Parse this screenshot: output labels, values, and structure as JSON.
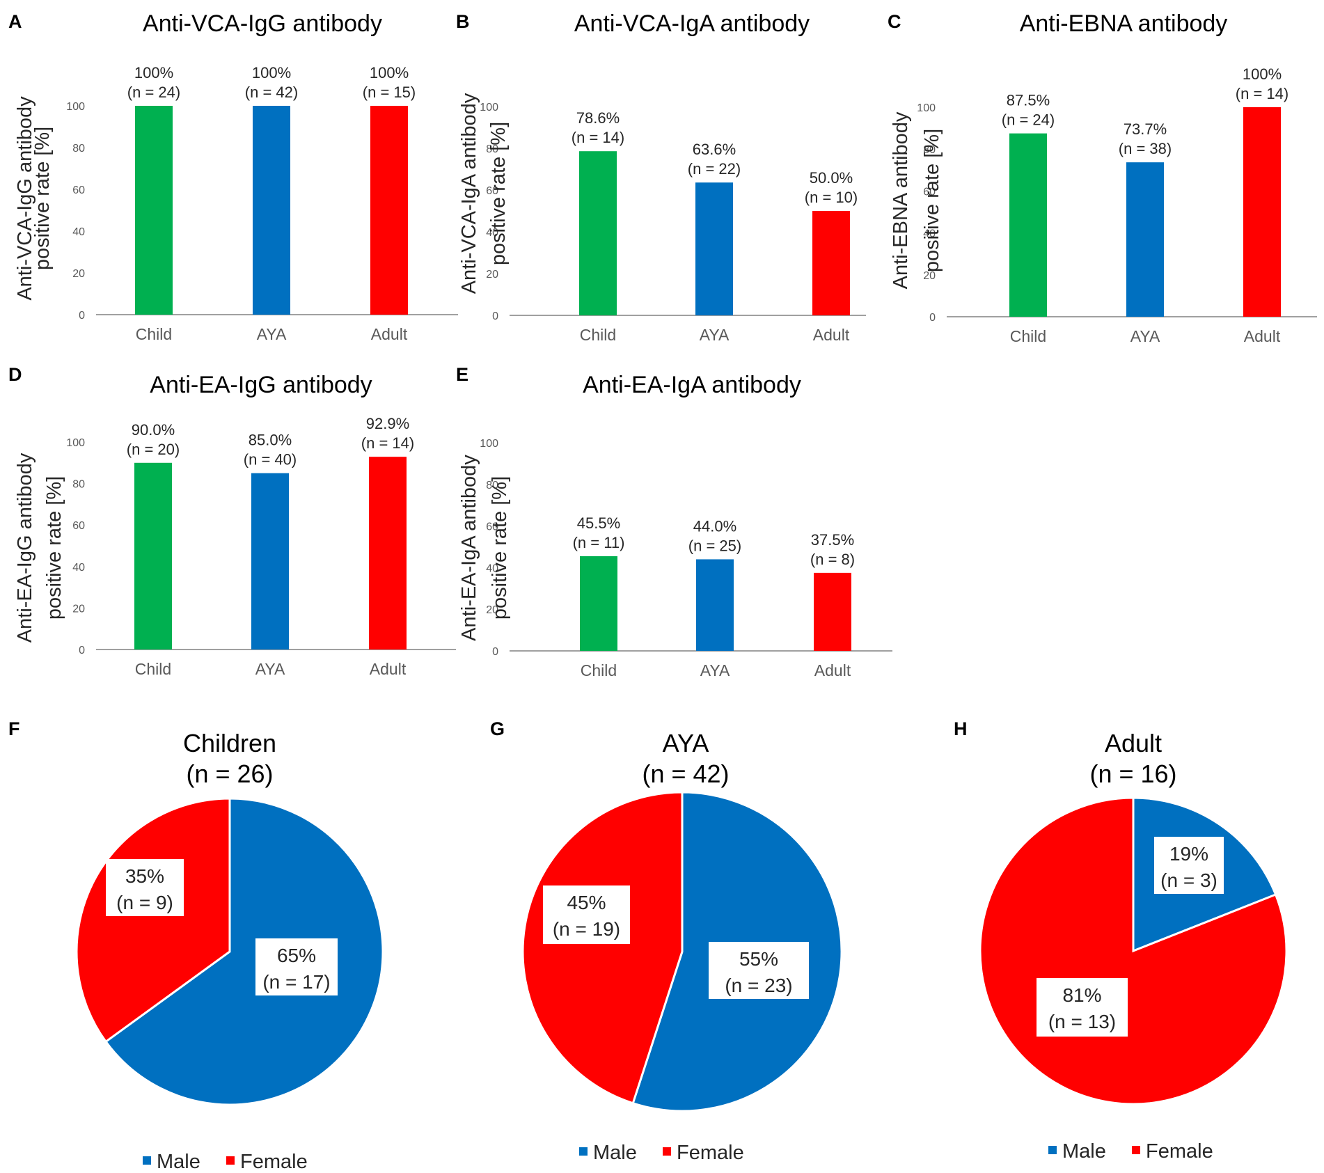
{
  "colors": {
    "green": "#00b050",
    "blue": "#0070c0",
    "red": "#ff0000",
    "axis": "#808080",
    "text": "#262626",
    "tick": "#595959"
  },
  "chart_data": [
    {
      "panel": "A",
      "type": "bar",
      "title": "Anti-VCA-IgG antibody",
      "ylabel": [
        "Anti-VCA-IgG antibody",
        "positive rate [%]"
      ],
      "ylim": [
        0,
        100
      ],
      "yticks": [
        "0",
        "20",
        "40",
        "60",
        "80",
        "100"
      ],
      "categories": [
        "Child",
        "AYA",
        "Adult"
      ],
      "values": [
        100,
        100,
        100
      ],
      "labels": [
        "100%",
        "100%",
        "100%"
      ],
      "n_labels": [
        "(n = 24)",
        "(n = 42)",
        "(n = 15)"
      ],
      "colors": [
        "green",
        "blue",
        "red"
      ]
    },
    {
      "panel": "B",
      "type": "bar",
      "title": "Anti-VCA-IgA antibody",
      "ylabel": [
        "Anti-VCA-IgA antibody",
        "positive rate [%]"
      ],
      "ylim": [
        0,
        100
      ],
      "yticks": [
        "0",
        "20",
        "40",
        "60",
        "80",
        "100"
      ],
      "categories": [
        "Child",
        "AYA",
        "Adult"
      ],
      "values": [
        78.6,
        63.6,
        50.0
      ],
      "labels": [
        "78.6%",
        "63.6%",
        "50.0%"
      ],
      "n_labels": [
        "(n = 14)",
        "(n = 22)",
        "(n = 10)"
      ],
      "colors": [
        "green",
        "blue",
        "red"
      ]
    },
    {
      "panel": "C",
      "type": "bar",
      "title": "Anti-EBNA antibody",
      "ylabel": [
        "Anti-EBNA antibody",
        "positive rate [%]"
      ],
      "ylim": [
        0,
        100
      ],
      "yticks": [
        "0",
        "20",
        "40",
        "60",
        "80",
        "100"
      ],
      "categories": [
        "Child",
        "AYA",
        "Adult"
      ],
      "values": [
        87.5,
        73.7,
        100
      ],
      "labels": [
        "87.5%",
        "73.7%",
        "100%"
      ],
      "n_labels": [
        "(n = 24)",
        "(n = 38)",
        "(n = 14)"
      ],
      "colors": [
        "green",
        "blue",
        "red"
      ]
    },
    {
      "panel": "D",
      "type": "bar",
      "title": "Anti-EA-IgG antibody",
      "ylabel": [
        "Anti-EA-IgG antibody",
        "positive rate [%]"
      ],
      "ylim": [
        0,
        100
      ],
      "yticks": [
        "0",
        "20",
        "40",
        "60",
        "80",
        "100"
      ],
      "categories": [
        "Child",
        "AYA",
        "Adult"
      ],
      "values": [
        90.0,
        85.0,
        92.9
      ],
      "labels": [
        "90.0%",
        "85.0%",
        "92.9%"
      ],
      "n_labels": [
        "(n = 20)",
        "(n = 40)",
        "(n = 14)"
      ],
      "colors": [
        "green",
        "blue",
        "red"
      ]
    },
    {
      "panel": "E",
      "type": "bar",
      "title": "Anti-EA-IgA antibody",
      "ylabel": [
        "Anti-EA-IgA antibody",
        "positive rate [%]"
      ],
      "ylim": [
        0,
        100
      ],
      "yticks": [
        "0",
        "20",
        "40",
        "60",
        "80",
        "100"
      ],
      "categories": [
        "Child",
        "AYA",
        "Adult"
      ],
      "values": [
        45.5,
        44.0,
        37.5
      ],
      "labels": [
        "45.5%",
        "44.0%",
        "37.5%"
      ],
      "n_labels": [
        "(n = 11)",
        "(n = 25)",
        "(n = 8)"
      ],
      "colors": [
        "green",
        "blue",
        "red"
      ]
    },
    {
      "panel": "F",
      "type": "pie",
      "title": [
        "Children",
        "(n = 26)"
      ],
      "slices": [
        {
          "name": "Male",
          "value": 65,
          "label": "65%",
          "n_label": "(n = 17)",
          "color": "blue"
        },
        {
          "name": "Female",
          "value": 35,
          "label": "35%",
          "n_label": "(n = 9)",
          "color": "red"
        }
      ],
      "legend": [
        "Male",
        "Female"
      ]
    },
    {
      "panel": "G",
      "type": "pie",
      "title": [
        "AYA",
        "(n = 42)"
      ],
      "slices": [
        {
          "name": "Male",
          "value": 55,
          "label": "55%",
          "n_label": "(n = 23)",
          "color": "blue"
        },
        {
          "name": "Female",
          "value": 45,
          "label": "45%",
          "n_label": "(n = 19)",
          "color": "red"
        }
      ],
      "legend": [
        "Male",
        "Female"
      ]
    },
    {
      "panel": "H",
      "type": "pie",
      "title": [
        "Adult",
        "(n = 16)"
      ],
      "slices": [
        {
          "name": "Male",
          "value": 19,
          "label": "19%",
          "n_label": "(n = 3)",
          "color": "blue"
        },
        {
          "name": "Female",
          "value": 81,
          "label": "81%",
          "n_label": "(n = 13)",
          "color": "red"
        }
      ],
      "legend": [
        "Male",
        "Female"
      ]
    }
  ]
}
